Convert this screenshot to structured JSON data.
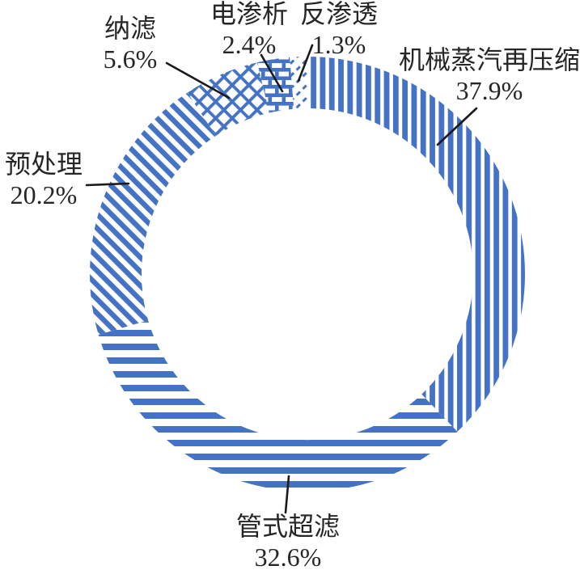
{
  "chart_data": {
    "type": "pie",
    "subtype": "donut",
    "title": "",
    "unit": "%",
    "direction": "clockwise",
    "start_angle_deg": 0,
    "legend": "none",
    "accent_color": "#4472C4",
    "label_color": "#262626",
    "leader_line_color": "#1a1a1a",
    "segments": [
      {
        "id": "mvr",
        "label": "机械蒸汽再压缩",
        "value": 37.9,
        "display": "37.9%",
        "pattern": "vertical-stripes"
      },
      {
        "id": "tubular-ultrafiltration",
        "label": "管式超滤",
        "value": 32.6,
        "display": "32.6%",
        "pattern": "horizontal-stripes"
      },
      {
        "id": "pretreatment",
        "label": "预处理",
        "value": 20.2,
        "display": "20.2%",
        "pattern": "downward-diagonal-stripes"
      },
      {
        "id": "nanofiltration",
        "label": "纳滤",
        "value": 5.6,
        "display": "5.6%",
        "pattern": "diagonal-lattice"
      },
      {
        "id": "electrodialysis",
        "label": "电渗析",
        "value": 2.4,
        "display": "2.4%",
        "pattern": "horizontal-brick"
      },
      {
        "id": "reverse-osmosis",
        "label": "反渗透",
        "value": 1.3,
        "display": "1.3%",
        "pattern": "diagonal-dashes"
      }
    ]
  }
}
